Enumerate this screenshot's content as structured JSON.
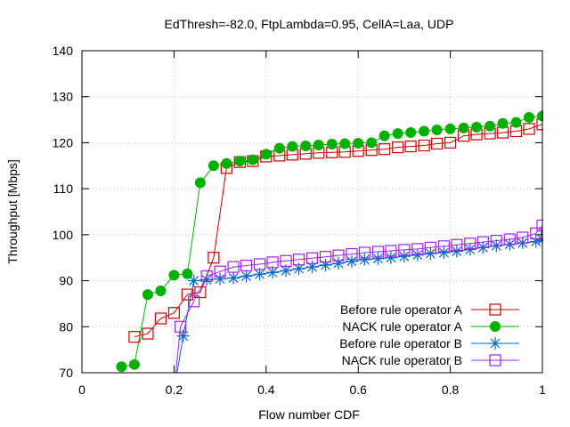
{
  "chart_data": {
    "type": "line",
    "title": "EdThresh=-82.0, FtpLambda=0.95, CellA=Laa, UDP",
    "xlabel": "Flow number  CDF",
    "ylabel": "Throughput [Mbps]",
    "xlim": [
      0,
      1
    ],
    "ylim": [
      70,
      140
    ],
    "xticks": [
      0,
      0.2,
      0.4,
      0.6,
      0.8,
      1
    ],
    "xtick_labels": [
      "0",
      "0.2",
      "0.4",
      "0.6",
      "0.8",
      "1"
    ],
    "yticks": [
      70,
      80,
      90,
      100,
      110,
      120,
      130,
      140
    ],
    "ytick_labels": [
      "70",
      "80",
      "90",
      "100",
      "110",
      "120",
      "130",
      "140"
    ],
    "grid": true,
    "legend_position": "bottom-right",
    "series": [
      {
        "name": "Before rule operator A",
        "color": "#cc0000",
        "marker": "square-open",
        "x": [
          0.114,
          0.143,
          0.171,
          0.2,
          0.229,
          0.257,
          0.286,
          0.314,
          0.343,
          0.371,
          0.4,
          0.429,
          0.457,
          0.486,
          0.514,
          0.543,
          0.571,
          0.6,
          0.629,
          0.657,
          0.686,
          0.714,
          0.743,
          0.771,
          0.8,
          0.829,
          0.857,
          0.886,
          0.914,
          0.943,
          0.971,
          1.0
        ],
        "y": [
          77.8,
          78.5,
          81.8,
          83.0,
          87.0,
          87.5,
          95.0,
          114.5,
          115.8,
          116.0,
          117.0,
          117.2,
          117.4,
          117.6,
          117.8,
          117.9,
          118.0,
          118.2,
          118.4,
          118.6,
          119.0,
          119.2,
          119.4,
          119.8,
          120.0,
          121.5,
          121.8,
          122.0,
          122.2,
          122.5,
          123.0,
          124.0
        ]
      },
      {
        "name": "NACK rule operator A",
        "color": "#00b000",
        "marker": "circle-filled",
        "x": [
          0.086,
          0.114,
          0.143,
          0.171,
          0.2,
          0.229,
          0.257,
          0.286,
          0.314,
          0.343,
          0.371,
          0.4,
          0.429,
          0.457,
          0.486,
          0.514,
          0.543,
          0.571,
          0.6,
          0.629,
          0.657,
          0.686,
          0.714,
          0.743,
          0.771,
          0.8,
          0.829,
          0.857,
          0.886,
          0.914,
          0.943,
          0.971,
          1.0
        ],
        "y": [
          71.3,
          71.8,
          87.0,
          87.8,
          91.2,
          91.5,
          111.3,
          115.0,
          115.5,
          116.0,
          116.3,
          117.5,
          118.8,
          119.2,
          119.3,
          119.5,
          119.7,
          119.8,
          119.9,
          120.0,
          121.5,
          122.0,
          122.2,
          122.5,
          122.8,
          123.0,
          123.2,
          123.4,
          123.6,
          124.2,
          124.4,
          125.5,
          125.8
        ]
      },
      {
        "name": "Before rule operator B",
        "color": "#0066cc",
        "marker": "star",
        "x": [
          0.2,
          0.22,
          0.243,
          0.271,
          0.3,
          0.329,
          0.357,
          0.386,
          0.414,
          0.443,
          0.471,
          0.5,
          0.529,
          0.557,
          0.586,
          0.614,
          0.643,
          0.671,
          0.7,
          0.729,
          0.757,
          0.786,
          0.814,
          0.843,
          0.871,
          0.9,
          0.929,
          0.957,
          0.986,
          1.0
        ],
        "y": [
          66.0,
          78.0,
          90.0,
          90.2,
          90.4,
          90.6,
          91.0,
          91.4,
          91.8,
          92.2,
          92.6,
          93.0,
          93.4,
          93.8,
          94.2,
          94.6,
          94.8,
          95.0,
          95.3,
          95.6,
          95.9,
          96.1,
          96.4,
          96.8,
          97.2,
          97.6,
          97.9,
          98.2,
          98.5,
          98.9
        ]
      },
      {
        "name": "NACK rule operator B",
        "color": "#a020f0",
        "marker": "square-open",
        "x": [
          0.2,
          0.214,
          0.243,
          0.271,
          0.3,
          0.329,
          0.357,
          0.386,
          0.414,
          0.443,
          0.471,
          0.5,
          0.529,
          0.557,
          0.586,
          0.614,
          0.643,
          0.671,
          0.7,
          0.729,
          0.757,
          0.786,
          0.814,
          0.843,
          0.871,
          0.9,
          0.929,
          0.957,
          0.986,
          1.0
        ],
        "y": [
          66.0,
          80.0,
          85.5,
          91.0,
          92.0,
          93.0,
          93.3,
          93.6,
          94.0,
          94.3,
          94.6,
          94.9,
          95.2,
          95.5,
          95.8,
          96.1,
          96.3,
          96.5,
          96.7,
          96.9,
          97.2,
          97.5,
          97.8,
          98.1,
          98.4,
          98.7,
          99.0,
          99.4,
          100.3,
          102.0
        ]
      }
    ]
  }
}
